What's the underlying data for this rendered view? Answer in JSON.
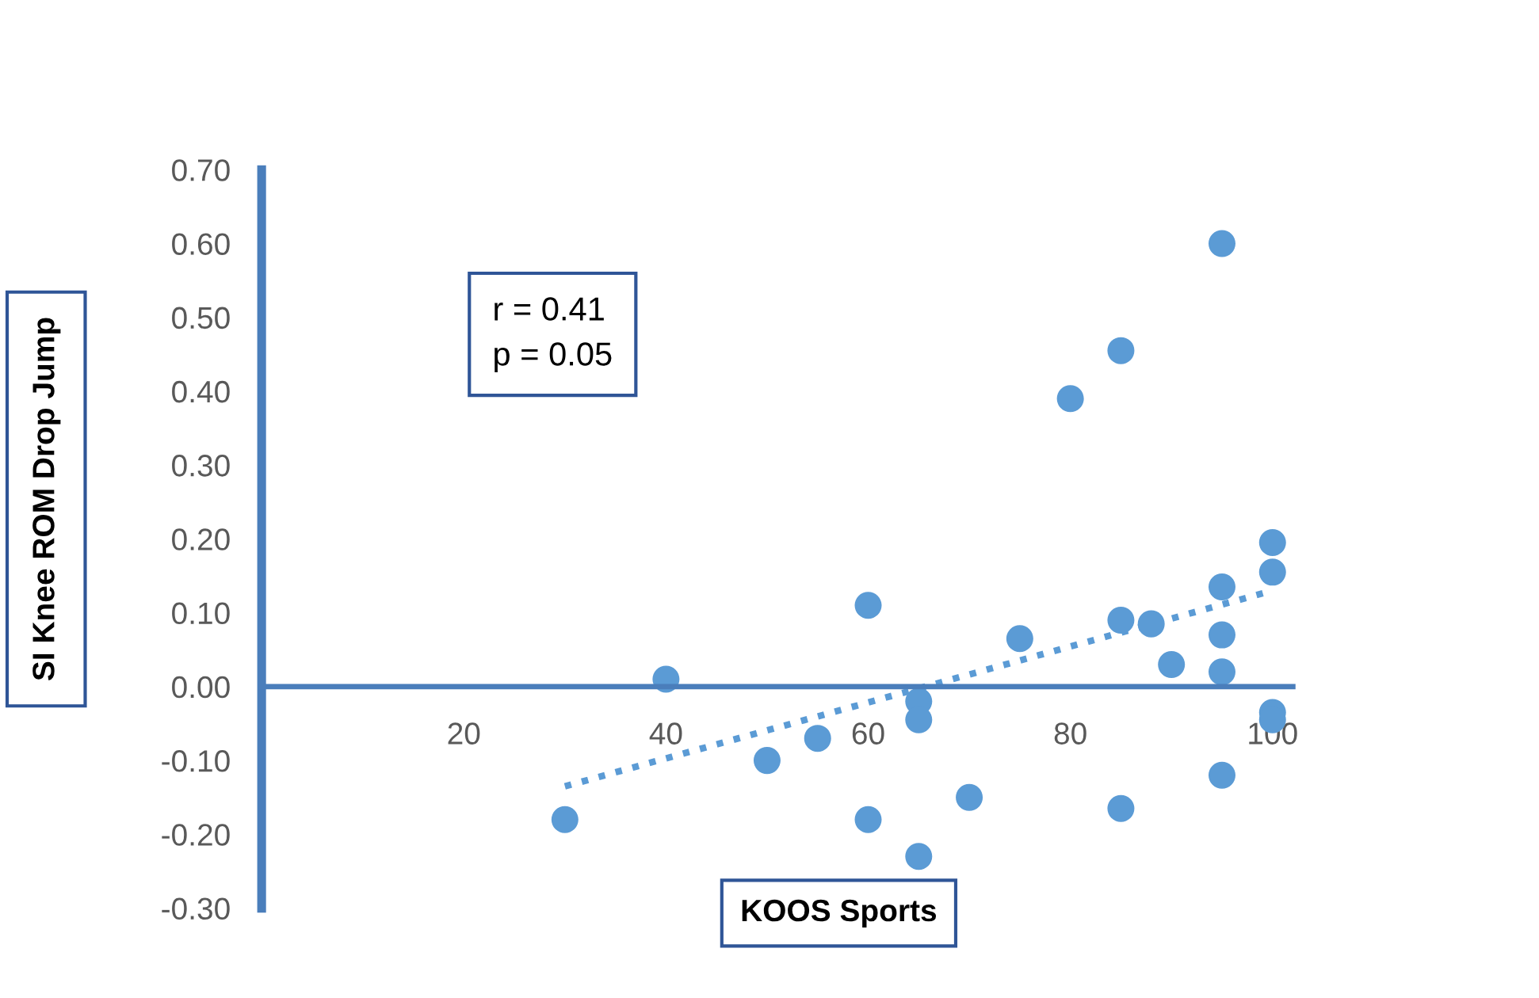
{
  "chart_data": {
    "type": "scatter",
    "xlabel": "KOOS Sports",
    "ylabel": "SI Knee ROM Drop Jump",
    "annotations": [
      "r = 0.41\np = 0.05"
    ],
    "series": [
      {
        "color": "#5b9bd5",
        "marker": "circle",
        "x": [
          30,
          40,
          50,
          55,
          60,
          60,
          65,
          65,
          65,
          70,
          75,
          80,
          85,
          85,
          85,
          88,
          90,
          95,
          95,
          95,
          95,
          95,
          100,
          100,
          100,
          100
        ],
        "values": [
          -0.18,
          0.01,
          -0.1,
          -0.07,
          0.11,
          -0.18,
          -0.02,
          -0.045,
          -0.23,
          -0.15,
          0.065,
          0.39,
          0.455,
          0.09,
          -0.165,
          0.085,
          0.03,
          0.6,
          0.135,
          0.07,
          0.02,
          -0.12,
          0.195,
          0.155,
          -0.035,
          -0.045
        ]
      },
      {
        "type": "line",
        "color": "#5b9bd5",
        "line_style": "dotted",
        "x": [
          30,
          100
        ],
        "values": [
          -0.135,
          0.13
        ]
      }
    ],
    "xlim": [
      0,
      102
    ],
    "ylim": [
      -0.3,
      0.7
    ],
    "xticks": [
      20,
      40,
      60,
      80,
      100
    ],
    "yticks": [
      {
        "value": 0.7,
        "label": "0.70"
      },
      {
        "value": 0.6,
        "label": "0.60"
      },
      {
        "value": 0.5,
        "label": "0.50"
      },
      {
        "value": 0.4,
        "label": "0.40"
      },
      {
        "value": 0.3,
        "label": "0.30"
      },
      {
        "value": 0.2,
        "label": "0.20"
      },
      {
        "value": 0.1,
        "label": "0.10"
      },
      {
        "value": 0,
        "label": "0.00"
      },
      {
        "value": -0.1,
        "label": "-0.10"
      },
      {
        "value": -0.2,
        "label": "-0.20"
      },
      {
        "value": -0.3,
        "label": "-0.30"
      }
    ],
    "grid": false,
    "legend": false
  }
}
